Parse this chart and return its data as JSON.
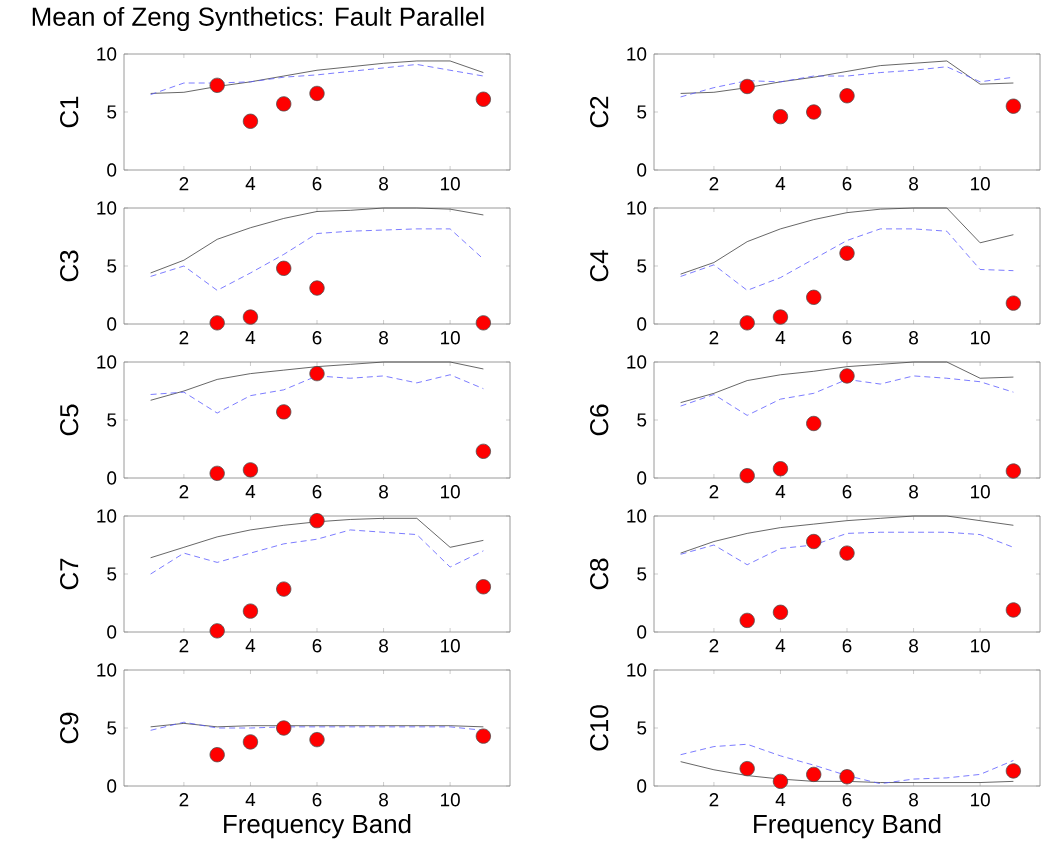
{
  "chart_data": [
    {
      "type": "line",
      "title": "Mean of Zeng Synthetics: Fault Parallel",
      "ylabel": "C1",
      "x": [
        1,
        2,
        3,
        4,
        5,
        6,
        7,
        8,
        9,
        10,
        11
      ],
      "xlim": [
        0.2,
        11.8
      ],
      "ylim": [
        0,
        10
      ],
      "xticks": [
        2,
        4,
        6,
        8,
        10
      ],
      "yticks": [
        0,
        5,
        10
      ],
      "series": [
        {
          "color": "#404040",
          "line_style": "solid",
          "values": [
            6.6,
            6.7,
            7.2,
            7.6,
            8.1,
            8.6,
            8.9,
            9.2,
            9.4,
            9.4,
            8.4
          ]
        },
        {
          "color": "#5a5aff",
          "line_style": "dashed",
          "values": [
            6.5,
            7.5,
            7.5,
            7.6,
            8.0,
            8.2,
            8.5,
            8.8,
            9.1,
            8.6,
            8.1
          ]
        },
        {
          "type": "scatter",
          "marker": "circle",
          "color": "#ff0000",
          "x": [
            3,
            4,
            5,
            6,
            11
          ],
          "values": [
            7.3,
            4.2,
            5.7,
            6.6,
            6.1
          ]
        }
      ]
    },
    {
      "type": "line",
      "ylabel": "C2",
      "x": [
        1,
        2,
        3,
        4,
        5,
        6,
        7,
        8,
        9,
        10,
        11
      ],
      "xlim": [
        0.2,
        11.8
      ],
      "ylim": [
        0,
        10
      ],
      "xticks": [
        2,
        4,
        6,
        8,
        10
      ],
      "yticks": [
        0,
        5,
        10
      ],
      "series": [
        {
          "color": "#404040",
          "line_style": "solid",
          "values": [
            6.6,
            6.7,
            7.1,
            7.6,
            8.0,
            8.5,
            9.0,
            9.2,
            9.4,
            7.4,
            7.5
          ]
        },
        {
          "color": "#5a5aff",
          "line_style": "dashed",
          "values": [
            6.3,
            7.1,
            7.7,
            7.6,
            8.1,
            8.1,
            8.4,
            8.6,
            8.9,
            7.6,
            8.0
          ]
        },
        {
          "type": "scatter",
          "marker": "circle",
          "color": "#ff0000",
          "x": [
            3,
            4,
            5,
            6,
            11
          ],
          "values": [
            7.2,
            4.6,
            5.0,
            6.4,
            5.5
          ]
        }
      ]
    },
    {
      "type": "line",
      "ylabel": "C3",
      "x": [
        1,
        2,
        3,
        4,
        5,
        6,
        7,
        8,
        9,
        10,
        11
      ],
      "xlim": [
        0.2,
        11.8
      ],
      "ylim": [
        0,
        10
      ],
      "xticks": [
        2,
        4,
        6,
        8,
        10
      ],
      "yticks": [
        0,
        5,
        10
      ],
      "series": [
        {
          "color": "#404040",
          "line_style": "solid",
          "values": [
            4.4,
            5.5,
            7.3,
            8.3,
            9.1,
            9.7,
            9.8,
            10,
            10,
            9.9,
            9.4
          ]
        },
        {
          "color": "#5a5aff",
          "line_style": "dashed",
          "values": [
            4.1,
            5.0,
            2.9,
            4.4,
            6.0,
            7.8,
            8.0,
            8.1,
            8.2,
            8.2,
            5.6
          ]
        },
        {
          "type": "scatter",
          "marker": "circle",
          "color": "#ff0000",
          "x": [
            3,
            4,
            5,
            6,
            11
          ],
          "values": [
            0.1,
            0.6,
            4.8,
            3.1,
            0.1
          ]
        }
      ]
    },
    {
      "type": "line",
      "ylabel": "C4",
      "x": [
        1,
        2,
        3,
        4,
        5,
        6,
        7,
        8,
        9,
        10,
        11
      ],
      "xlim": [
        0.2,
        11.8
      ],
      "ylim": [
        0,
        10
      ],
      "xticks": [
        2,
        4,
        6,
        8,
        10
      ],
      "yticks": [
        0,
        5,
        10
      ],
      "series": [
        {
          "color": "#404040",
          "line_style": "solid",
          "values": [
            4.3,
            5.3,
            7.1,
            8.2,
            9.0,
            9.6,
            9.9,
            10,
            10,
            7.0,
            7.7
          ]
        },
        {
          "color": "#5a5aff",
          "line_style": "dashed",
          "values": [
            4.1,
            5.1,
            2.9,
            4.0,
            5.6,
            7.2,
            8.2,
            8.2,
            8.0,
            4.7,
            4.6
          ]
        },
        {
          "type": "scatter",
          "marker": "circle",
          "color": "#ff0000",
          "x": [
            3,
            4,
            5,
            6,
            11
          ],
          "values": [
            0.1,
            0.6,
            2.3,
            6.1,
            1.8
          ]
        }
      ]
    },
    {
      "type": "line",
      "ylabel": "C5",
      "x": [
        1,
        2,
        3,
        4,
        5,
        6,
        7,
        8,
        9,
        10,
        11
      ],
      "xlim": [
        0.2,
        11.8
      ],
      "ylim": [
        0,
        10
      ],
      "xticks": [
        2,
        4,
        6,
        8,
        10
      ],
      "yticks": [
        0,
        5,
        10
      ],
      "series": [
        {
          "color": "#404040",
          "line_style": "solid",
          "values": [
            6.7,
            7.5,
            8.5,
            9.0,
            9.3,
            9.6,
            9.8,
            10,
            10,
            10,
            9.4
          ]
        },
        {
          "color": "#5a5aff",
          "line_style": "dashed",
          "values": [
            7.2,
            7.4,
            5.6,
            7.1,
            7.6,
            8.8,
            8.6,
            8.8,
            8.2,
            8.9,
            7.7
          ]
        },
        {
          "type": "scatter",
          "marker": "circle",
          "color": "#ff0000",
          "x": [
            3,
            4,
            5,
            6,
            11
          ],
          "values": [
            0.4,
            0.7,
            5.7,
            9.0,
            2.3
          ]
        }
      ]
    },
    {
      "type": "line",
      "ylabel": "C6",
      "x": [
        1,
        2,
        3,
        4,
        5,
        6,
        7,
        8,
        9,
        10,
        11
      ],
      "xlim": [
        0.2,
        11.8
      ],
      "ylim": [
        0,
        10
      ],
      "xticks": [
        2,
        4,
        6,
        8,
        10
      ],
      "yticks": [
        0,
        5,
        10
      ],
      "series": [
        {
          "color": "#404040",
          "line_style": "solid",
          "values": [
            6.5,
            7.3,
            8.4,
            8.9,
            9.2,
            9.6,
            9.8,
            10,
            10,
            8.6,
            8.7
          ]
        },
        {
          "color": "#5a5aff",
          "line_style": "dashed",
          "values": [
            6.2,
            7.2,
            5.4,
            6.8,
            7.3,
            8.5,
            8.1,
            8.8,
            8.6,
            8.3,
            7.4
          ]
        },
        {
          "type": "scatter",
          "marker": "circle",
          "color": "#ff0000",
          "x": [
            3,
            4,
            5,
            6,
            11
          ],
          "values": [
            0.2,
            0.8,
            4.7,
            8.8,
            0.6
          ]
        }
      ]
    },
    {
      "type": "line",
      "ylabel": "C7",
      "x": [
        1,
        2,
        3,
        4,
        5,
        6,
        7,
        8,
        9,
        10,
        11
      ],
      "xlim": [
        0.2,
        11.8
      ],
      "ylim": [
        0,
        10
      ],
      "xticks": [
        2,
        4,
        6,
        8,
        10
      ],
      "yticks": [
        0,
        5,
        10
      ],
      "series": [
        {
          "color": "#404040",
          "line_style": "solid",
          "values": [
            6.4,
            7.3,
            8.2,
            8.8,
            9.2,
            9.5,
            9.7,
            9.8,
            9.8,
            7.3,
            7.9
          ]
        },
        {
          "color": "#5a5aff",
          "line_style": "dashed",
          "values": [
            5.0,
            6.8,
            6.0,
            6.8,
            7.6,
            8.0,
            8.8,
            8.6,
            8.4,
            5.6,
            7.0
          ]
        },
        {
          "type": "scatter",
          "marker": "circle",
          "color": "#ff0000",
          "x": [
            3,
            4,
            5,
            6,
            11
          ],
          "values": [
            0.1,
            1.8,
            3.7,
            9.6,
            3.9
          ]
        }
      ]
    },
    {
      "type": "line",
      "ylabel": "C8",
      "x": [
        1,
        2,
        3,
        4,
        5,
        6,
        7,
        8,
        9,
        10,
        11
      ],
      "xlim": [
        0.2,
        11.8
      ],
      "ylim": [
        0,
        10
      ],
      "xticks": [
        2,
        4,
        6,
        8,
        10
      ],
      "yticks": [
        0,
        5,
        10
      ],
      "series": [
        {
          "color": "#404040",
          "line_style": "solid",
          "values": [
            6.8,
            7.8,
            8.5,
            9.0,
            9.3,
            9.6,
            9.8,
            10,
            10,
            9.6,
            9.2
          ]
        },
        {
          "color": "#5a5aff",
          "line_style": "dashed",
          "values": [
            6.7,
            7.5,
            5.8,
            7.2,
            7.5,
            8.5,
            8.6,
            8.6,
            8.6,
            8.4,
            7.3
          ]
        },
        {
          "type": "scatter",
          "marker": "circle",
          "color": "#ff0000",
          "x": [
            3,
            4,
            5,
            6,
            11
          ],
          "values": [
            1.0,
            1.7,
            7.8,
            6.8,
            1.9
          ]
        }
      ]
    },
    {
      "type": "line",
      "ylabel": "C9",
      "xlabel": "Frequency Band",
      "x": [
        1,
        2,
        3,
        4,
        5,
        6,
        7,
        8,
        9,
        10,
        11
      ],
      "xlim": [
        0.2,
        11.8
      ],
      "ylim": [
        0,
        10
      ],
      "xticks": [
        2,
        4,
        6,
        8,
        10
      ],
      "yticks": [
        0,
        5,
        10
      ],
      "series": [
        {
          "color": "#404040",
          "line_style": "solid",
          "values": [
            5.1,
            5.4,
            5.1,
            5.2,
            5.2,
            5.2,
            5.2,
            5.2,
            5.2,
            5.2,
            5.1
          ]
        },
        {
          "color": "#5a5aff",
          "line_style": "dashed",
          "values": [
            4.8,
            5.5,
            5.0,
            5.0,
            5.1,
            5.1,
            5.1,
            5.1,
            5.1,
            5.1,
            4.8
          ]
        },
        {
          "type": "scatter",
          "marker": "circle",
          "color": "#ff0000",
          "x": [
            3,
            4,
            5,
            6,
            11
          ],
          "values": [
            2.7,
            3.8,
            5.0,
            4.0,
            4.3
          ]
        }
      ]
    },
    {
      "type": "line",
      "ylabel": "C10",
      "xlabel": "Frequency Band",
      "x": [
        1,
        2,
        3,
        4,
        5,
        6,
        7,
        8,
        9,
        10,
        11
      ],
      "xlim": [
        0.2,
        11.8
      ],
      "ylim": [
        0,
        10
      ],
      "xticks": [
        2,
        4,
        6,
        8,
        10
      ],
      "yticks": [
        0,
        5,
        10
      ],
      "series": [
        {
          "color": "#404040",
          "line_style": "solid",
          "values": [
            2.1,
            1.4,
            0.9,
            0.6,
            0.4,
            0.4,
            0.3,
            0.3,
            0.3,
            0.3,
            0.4
          ]
        },
        {
          "color": "#5a5aff",
          "line_style": "dashed",
          "values": [
            2.7,
            3.4,
            3.6,
            2.6,
            1.8,
            0.9,
            0.2,
            0.6,
            0.7,
            1.0,
            2.2
          ]
        },
        {
          "type": "scatter",
          "marker": "circle",
          "color": "#ff0000",
          "x": [
            3,
            4,
            5,
            6,
            11
          ],
          "values": [
            1.5,
            0.4,
            1.0,
            0.8,
            1.3
          ]
        }
      ]
    }
  ]
}
